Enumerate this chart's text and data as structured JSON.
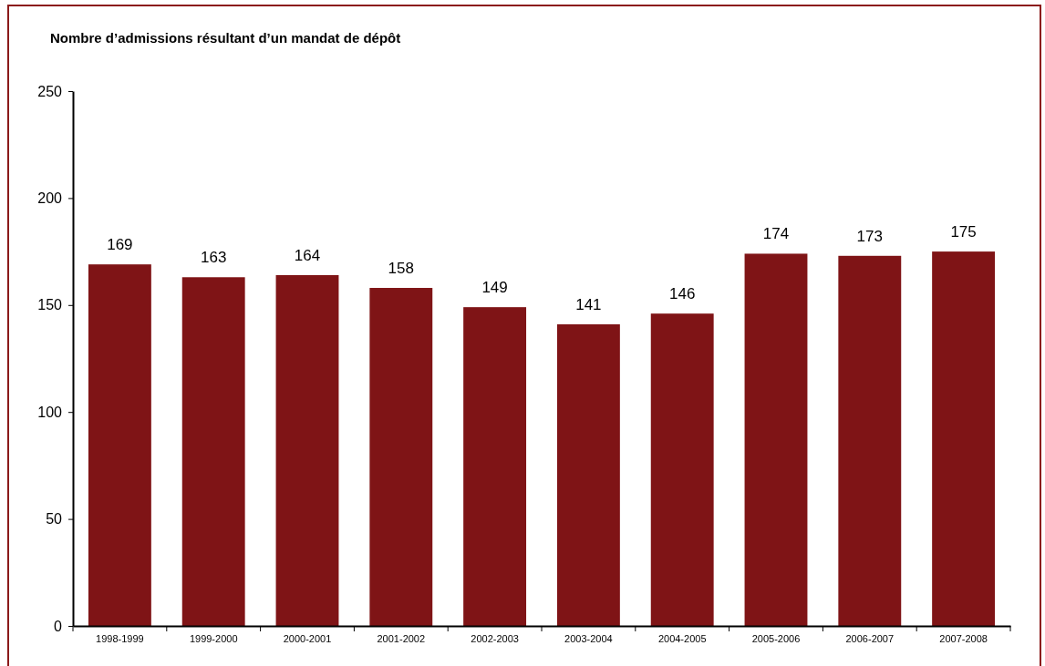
{
  "chart_data": {
    "type": "bar",
    "title": "Nombre d’admissions résultant d’un mandat de dépôt",
    "categories": [
      "1998-1999",
      "1999-2000",
      "2000-2001",
      "2001-2002",
      "2002-2003",
      "2003-2004",
      "2004-2005",
      "2005-2006",
      "2006-2007",
      "2007-2008"
    ],
    "values": [
      169,
      163,
      164,
      158,
      149,
      141,
      146,
      174,
      173,
      175
    ],
    "color": "#7f1416",
    "ylim": [
      0,
      250
    ],
    "yticks": [
      0,
      50,
      100,
      150,
      200,
      250
    ],
    "grid": false,
    "data_labels": true
  }
}
